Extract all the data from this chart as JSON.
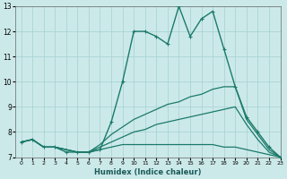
{
  "xlabel": "Humidex (Indice chaleur)",
  "bg_color": "#cce9e9",
  "grid_color": "#aad4d4",
  "line_color": "#1a7a6a",
  "xlim": [
    -0.5,
    23
  ],
  "ylim": [
    7,
    13
  ],
  "xticks": [
    0,
    1,
    2,
    3,
    4,
    5,
    6,
    7,
    8,
    9,
    10,
    11,
    12,
    13,
    14,
    15,
    16,
    17,
    18,
    19,
    20,
    21,
    22,
    23
  ],
  "yticks": [
    7,
    8,
    9,
    10,
    11,
    12,
    13
  ],
  "series": [
    {
      "x": [
        0,
        1,
        2,
        3,
        4,
        5,
        6,
        7,
        8,
        9,
        10,
        11,
        12,
        13,
        14,
        15,
        16,
        17,
        18,
        19,
        20,
        21,
        22,
        23
      ],
      "y": [
        7.6,
        7.7,
        7.4,
        7.4,
        7.2,
        7.2,
        7.2,
        7.3,
        8.4,
        10.0,
        12.0,
        12.0,
        11.8,
        11.5,
        13.0,
        11.8,
        12.5,
        12.8,
        11.3,
        9.8,
        8.6,
        8.0,
        7.4,
        7.0
      ],
      "style": "-",
      "marker": "+",
      "lw": 1.0,
      "ms": 3.5
    },
    {
      "x": [
        0,
        1,
        2,
        3,
        4,
        5,
        6,
        7,
        8,
        9,
        10,
        11,
        12,
        13,
        14,
        15,
        16,
        17,
        18,
        19,
        20,
        21,
        22,
        23
      ],
      "y": [
        7.6,
        7.7,
        7.4,
        7.4,
        7.3,
        7.2,
        7.2,
        7.5,
        7.9,
        8.2,
        8.5,
        8.7,
        8.9,
        9.1,
        9.2,
        9.4,
        9.5,
        9.7,
        9.8,
        9.8,
        8.5,
        7.9,
        7.3,
        7.0
      ],
      "style": "-",
      "marker": null,
      "lw": 0.9
    },
    {
      "x": [
        0,
        1,
        2,
        3,
        4,
        5,
        6,
        7,
        8,
        9,
        10,
        11,
        12,
        13,
        14,
        15,
        16,
        17,
        18,
        19,
        20,
        21,
        22,
        23
      ],
      "y": [
        7.6,
        7.7,
        7.4,
        7.4,
        7.3,
        7.2,
        7.2,
        7.4,
        7.6,
        7.8,
        8.0,
        8.1,
        8.3,
        8.4,
        8.5,
        8.6,
        8.7,
        8.8,
        8.9,
        9.0,
        8.3,
        7.7,
        7.2,
        7.0
      ],
      "style": "-",
      "marker": null,
      "lw": 0.9
    },
    {
      "x": [
        0,
        1,
        2,
        3,
        4,
        5,
        6,
        7,
        8,
        9,
        10,
        11,
        12,
        13,
        14,
        15,
        16,
        17,
        18,
        19,
        20,
        21,
        22,
        23
      ],
      "y": [
        7.6,
        7.7,
        7.4,
        7.4,
        7.3,
        7.2,
        7.2,
        7.3,
        7.4,
        7.5,
        7.5,
        7.5,
        7.5,
        7.5,
        7.5,
        7.5,
        7.5,
        7.5,
        7.4,
        7.4,
        7.3,
        7.2,
        7.1,
        7.0
      ],
      "style": "-",
      "marker": null,
      "lw": 0.9
    }
  ]
}
